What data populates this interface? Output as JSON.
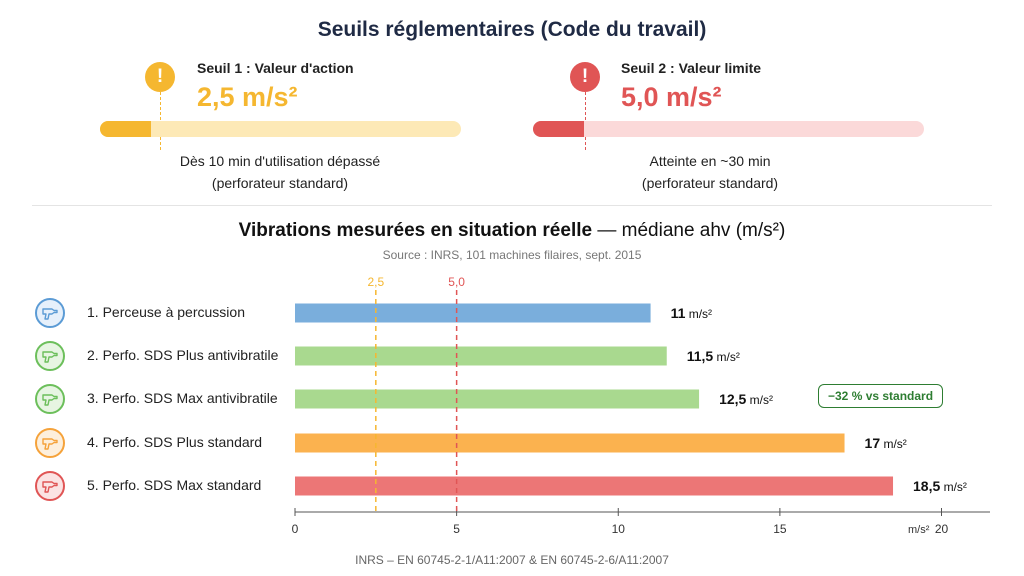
{
  "title": "Seuils réglementaires (Code du travail)",
  "thresholds": [
    {
      "icon": "warning-icon",
      "glyph": "!",
      "label": "Seuil 1 : Valeur d'action",
      "value": "2,5 m/s²",
      "color": "#f5b730",
      "track_color": "#fde9b6",
      "fill_fraction": 0.14,
      "desc_line1": "Dès 10 min d'utilisation dépassé",
      "desc_line2": "(perforateur standard)"
    },
    {
      "icon": "alert-icon",
      "glyph": "!",
      "label": "Seuil 2 : Valeur limite",
      "value": "5,0 m/s²",
      "color": "#e05555",
      "track_color": "#fbd9d9",
      "fill_fraction": 0.13,
      "desc_line1": "Atteinte en ~30 min",
      "desc_line2": "(perforateur standard)"
    }
  ],
  "chart_title_bold": "Vibrations mesurées en situation réelle",
  "chart_title_rest": " — médiane ahv (m/s²)",
  "source": "Source : INRS, 101 machines filaires, sept. 2015",
  "footer": "INRS – EN 60745-2-1/A11:2007 & EN 60745-2-6/A11:2007",
  "badge": "−32 % vs standard",
  "chart_data": {
    "type": "bar",
    "orientation": "horizontal",
    "categories": [
      "1. Perceuse à percussion",
      "2. Perfo. SDS Plus antivibratile",
      "3. Perfo. SDS Max antivibratile",
      "4. Perfo. SDS Plus standard",
      "5. Perfo. SDS Max standard"
    ],
    "values": [
      11,
      11.5,
      12.5,
      17,
      18.5
    ],
    "value_labels": [
      "11",
      "11,5",
      "12,5",
      "17",
      "18,5"
    ],
    "unit": "m/s²",
    "colors": [
      "#7aaedc",
      "#a9d98f",
      "#a9d98f",
      "#fbb24f",
      "#ec7676"
    ],
    "icon_colors": [
      "#5b9bd5",
      "#6cbf5b",
      "#6cbf5b",
      "#f5a23a",
      "#e05555"
    ],
    "icon_bg": [
      "#e6f0fb",
      "#e7f5e2",
      "#e7f5e2",
      "#fdefdc",
      "#fbe3e3"
    ],
    "xlim": [
      0,
      21.5
    ],
    "xticks": [
      0,
      5,
      10,
      15,
      20
    ],
    "xlabel": "m/s²",
    "reference_lines": [
      {
        "value": 2.5,
        "label": "2,5",
        "color": "#f5b730"
      },
      {
        "value": 5,
        "label": "5,0",
        "color": "#e05555"
      }
    ],
    "grid": false
  }
}
